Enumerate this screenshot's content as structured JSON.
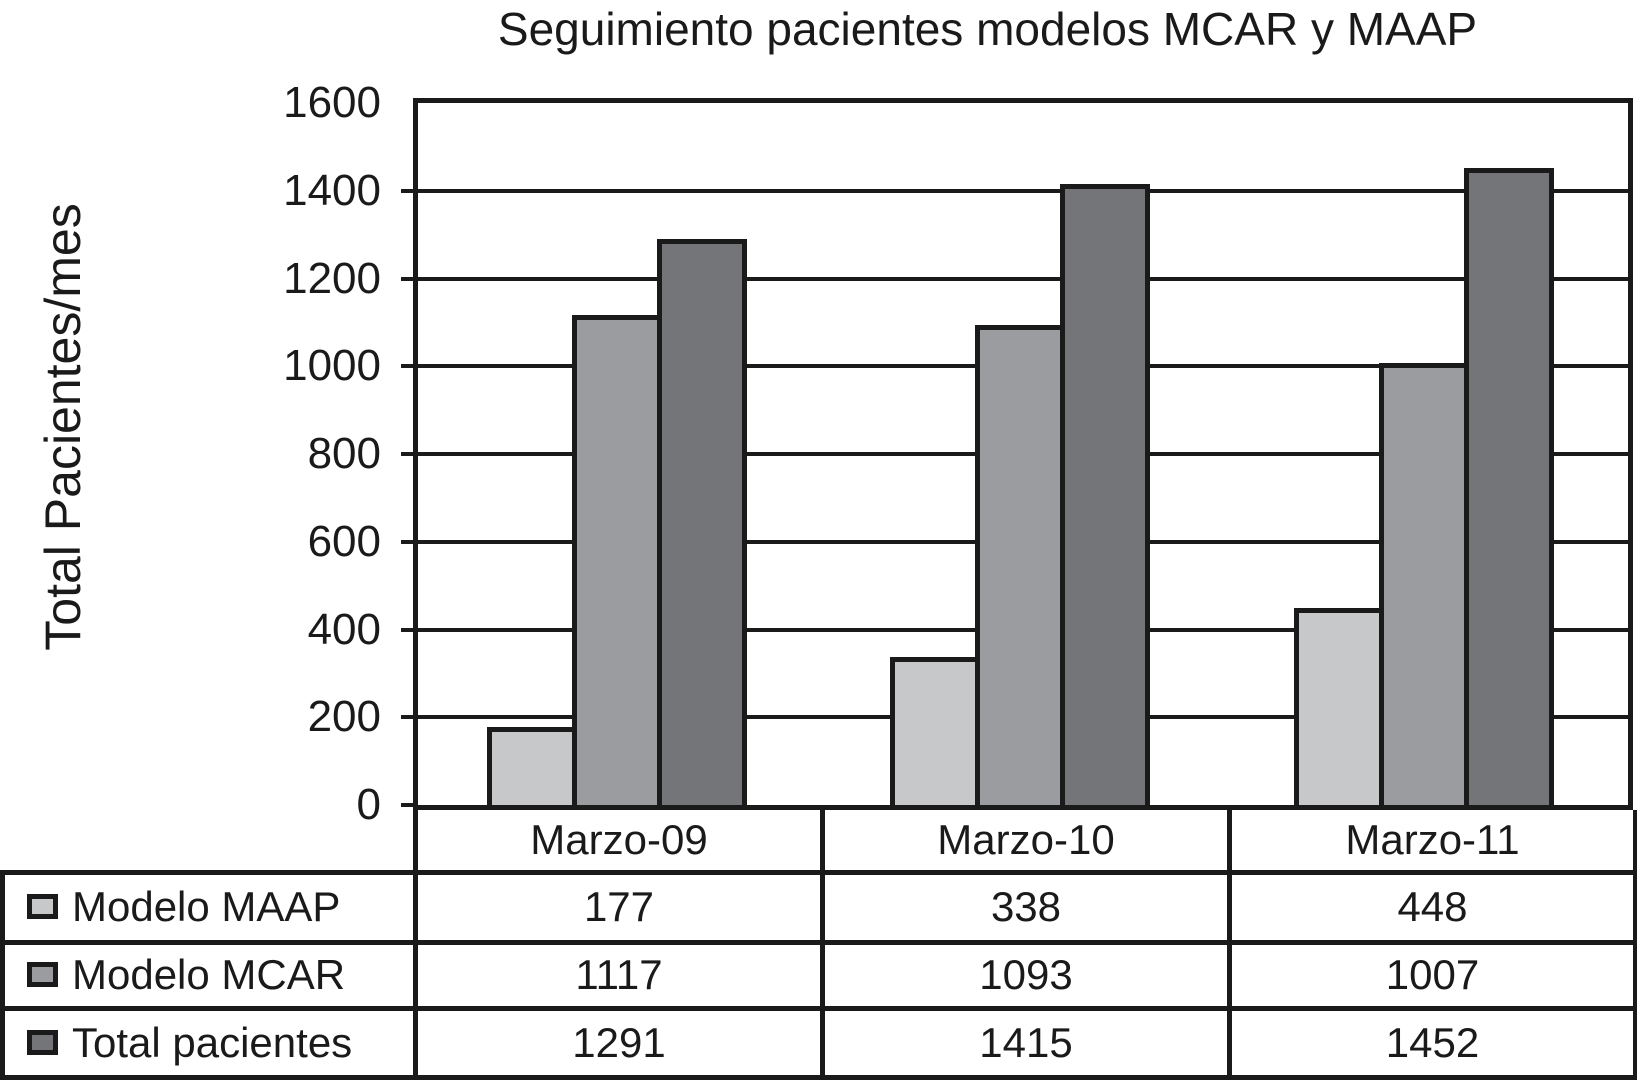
{
  "chart_data": {
    "type": "bar",
    "title": "Seguimiento pacientes modelos MCAR y MAAP",
    "xlabel": "",
    "ylabel": "Total Pacientes/mes",
    "categories": [
      "Marzo-09",
      "Marzo-10",
      "Marzo-11"
    ],
    "series": [
      {
        "name": "Modelo MAAP",
        "values": [
          177,
          338,
          448
        ],
        "color": "#c7c8ca"
      },
      {
        "name": "Modelo MCAR",
        "values": [
          1117,
          1093,
          1007
        ],
        "color": "#9a9c9f"
      },
      {
        "name": "Total pacientes",
        "values": [
          1291,
          1415,
          1452
        ],
        "color": "#737578"
      }
    ],
    "ylim": [
      0,
      1600
    ],
    "ytick_step": 200,
    "yticks": [
      0,
      200,
      400,
      600,
      800,
      1000,
      1200,
      1400,
      1600
    ],
    "grid": true,
    "legend_position": "table-left",
    "colors": {
      "ink": "#1a1a1a",
      "background": "#ffffff"
    }
  }
}
